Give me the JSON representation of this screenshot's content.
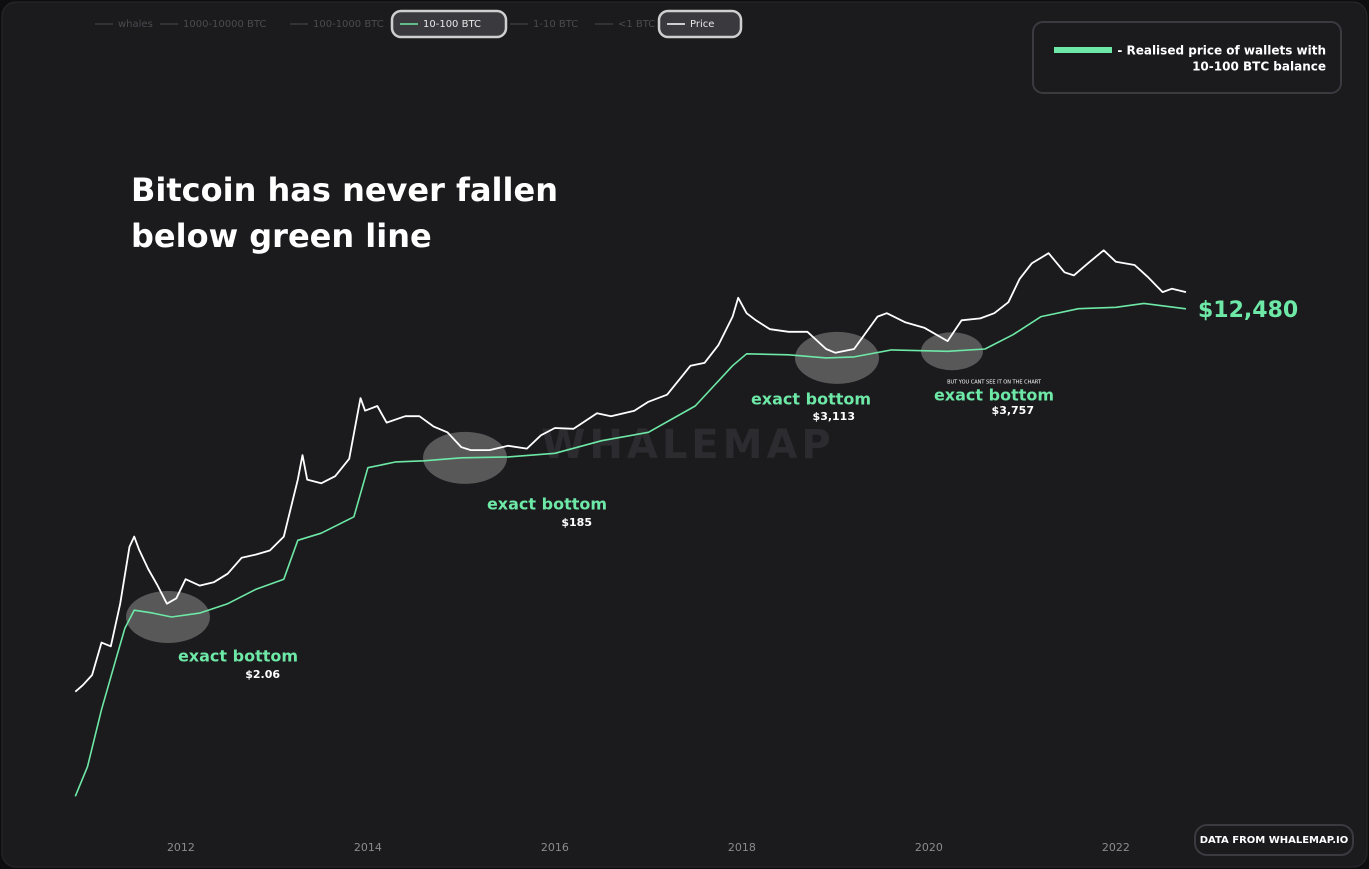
{
  "chart_data": {
    "type": "line",
    "headline": [
      "Bitcoin has never fallen",
      "below green line"
    ],
    "legend_box": [
      "- Realised price of wallets with",
      "10-100 BTC balance"
    ],
    "inactive_series": [
      "whales",
      "1000-10000 BTC",
      "100-1000 BTC",
      "1-10 BTC",
      "<1 BTC"
    ],
    "watermark": "WHALEMAP",
    "source_button": "DATA FROM WHALEMAP.IO",
    "note": "BUT YOU CANT SEE IT ON THE CHART",
    "y_scale": "log",
    "grid": false,
    "xlim": [
      2010.87,
      2022.75
    ],
    "xticks": [
      2012,
      2014,
      2016,
      2018,
      2020,
      2022
    ],
    "ylim": [
      0.01,
      1000000
    ],
    "series": [
      {
        "name": "Price",
        "color": "#ffffff",
        "x": [
          2010.87,
          2010.95,
          2011.05,
          2011.15,
          2011.25,
          2011.35,
          2011.45,
          2011.5,
          2011.55,
          2011.65,
          2011.75,
          2011.85,
          2011.95,
          2012.05,
          2012.2,
          2012.35,
          2012.5,
          2012.65,
          2012.8,
          2012.95,
          2013.1,
          2013.25,
          2013.3,
          2013.35,
          2013.5,
          2013.65,
          2013.8,
          2013.92,
          2013.97,
          2014.1,
          2014.2,
          2014.4,
          2014.55,
          2014.7,
          2014.85,
          2015.0,
          2015.1,
          2015.3,
          2015.5,
          2015.7,
          2015.85,
          2016.0,
          2016.2,
          2016.45,
          2016.6,
          2016.85,
          2017.0,
          2017.2,
          2017.45,
          2017.6,
          2017.75,
          2017.9,
          2017.96,
          2018.05,
          2018.15,
          2018.3,
          2018.5,
          2018.7,
          2018.9,
          2019.0,
          2019.2,
          2019.45,
          2019.55,
          2019.75,
          2019.95,
          2020.2,
          2020.35,
          2020.55,
          2020.7,
          2020.85,
          2020.97,
          2021.1,
          2021.28,
          2021.45,
          2021.55,
          2021.7,
          2021.87,
          2022.0,
          2022.2,
          2022.35,
          2022.5,
          2022.6,
          2022.75
        ],
        "values": [
          0.25,
          0.3,
          0.4,
          1.0,
          0.9,
          3,
          15,
          20,
          14,
          8,
          5,
          3,
          3.5,
          6,
          5,
          5.5,
          7,
          11,
          12,
          13.5,
          20,
          100,
          200,
          100,
          90,
          110,
          180,
          1000,
          700,
          800,
          500,
          600,
          600,
          450,
          380,
          250,
          230,
          230,
          260,
          240,
          350,
          430,
          420,
          650,
          600,
          700,
          900,
          1100,
          2500,
          2700,
          4500,
          10000,
          17000,
          11000,
          9000,
          7000,
          6500,
          6500,
          4000,
          3600,
          4000,
          10000,
          11000,
          8500,
          7300,
          5000,
          9000,
          9500,
          11000,
          15000,
          29000,
          45000,
          60000,
          35000,
          32000,
          45000,
          65000,
          47000,
          43000,
          30000,
          20000,
          22000,
          20000
        ]
      },
      {
        "name": "10-100 BTC",
        "color": "#6ee8a6",
        "x": [
          2010.87,
          2011.0,
          2011.15,
          2011.3,
          2011.4,
          2011.5,
          2011.7,
          2011.9,
          2012.2,
          2012.5,
          2012.8,
          2013.1,
          2013.25,
          2013.5,
          2013.85,
          2014.0,
          2014.3,
          2014.6,
          2015.0,
          2015.5,
          2016.0,
          2016.5,
          2017.0,
          2017.5,
          2017.9,
          2018.05,
          2018.5,
          2018.9,
          2019.2,
          2019.6,
          2020.2,
          2020.6,
          2020.9,
          2021.2,
          2021.6,
          2022.0,
          2022.3,
          2022.75
        ],
        "values": [
          0.013,
          0.03,
          0.15,
          0.6,
          1.5,
          2.5,
          2.3,
          2.06,
          2.3,
          3,
          4.5,
          6,
          18,
          22,
          35,
          140,
          165,
          170,
          185,
          190,
          210,
          300,
          380,
          800,
          2500,
          3500,
          3400,
          3113,
          3200,
          3900,
          3757,
          4000,
          6000,
          10000,
          12500,
          13000,
          14500,
          12480
        ],
        "value_labels": {
          "37": "$12,480"
        }
      }
    ],
    "annotations": [
      {
        "text": "exact bottom",
        "value": 2.06,
        "value_label": "$2.06"
      },
      {
        "text": "exact bottom",
        "value": 185,
        "value_label": "$185"
      },
      {
        "text": "exact bottom",
        "value": 3113,
        "value_label": "$3,113"
      },
      {
        "text": "exact bottom",
        "value": 3757,
        "value_label": "$3,757"
      }
    ]
  }
}
